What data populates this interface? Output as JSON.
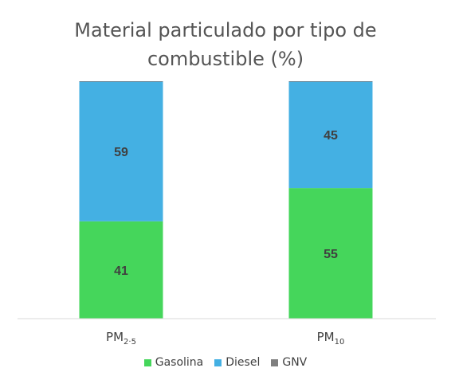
{
  "chart_data": {
    "type": "bar",
    "stacked": true,
    "percent_stacked": true,
    "title": "Material particulado por tipo de combustible (%)",
    "title_lines": [
      "Material particulado por tipo de",
      "combustible (%)"
    ],
    "categories": [
      {
        "base": "PM",
        "sub": "2·5"
      },
      {
        "base": "PM",
        "sub": "10"
      }
    ],
    "series": [
      {
        "name": "Gasolina",
        "color": "#45d65b",
        "values": [
          41,
          55
        ]
      },
      {
        "name": "Diesel",
        "color": "#44b0e3",
        "values": [
          59,
          45
        ]
      },
      {
        "name": "GNV",
        "color": "#7f7f7f",
        "values": [
          0,
          0
        ]
      }
    ],
    "data_labels": true,
    "ylim": [
      0,
      100
    ],
    "xlabel": "",
    "ylabel": "",
    "grid": false,
    "legend_position": "bottom"
  }
}
